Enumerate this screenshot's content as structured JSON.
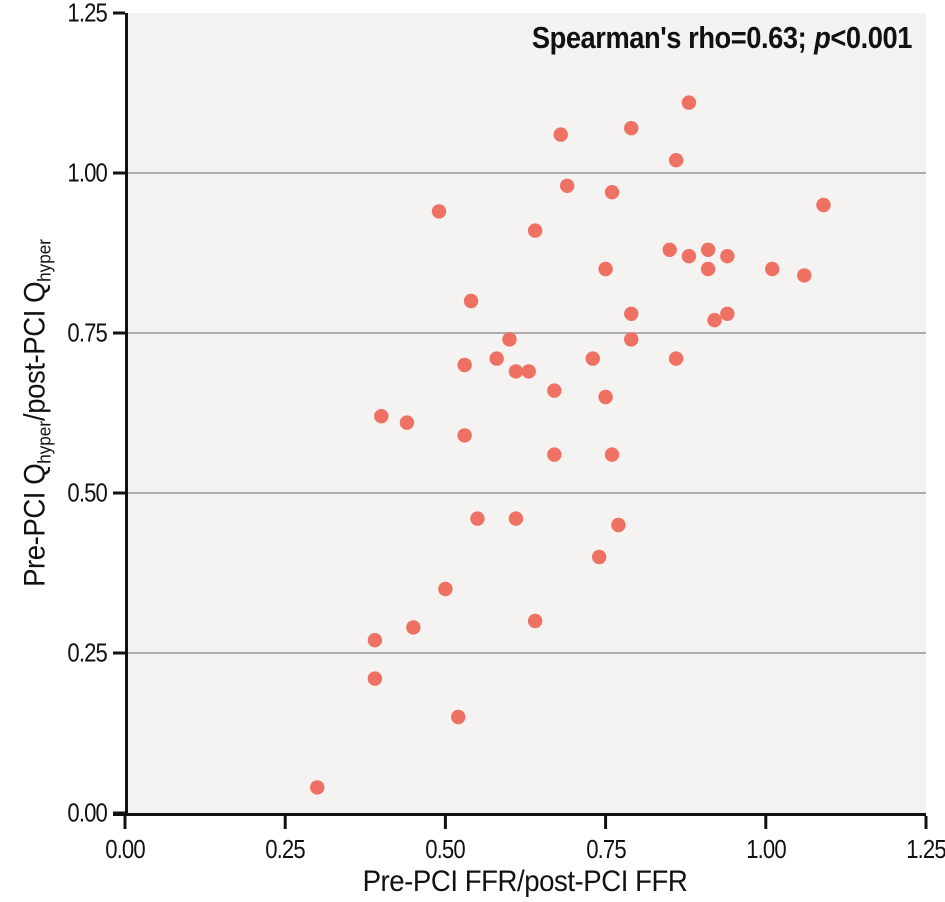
{
  "figure": {
    "annotation": {
      "text_before": "Spearman's rho=0.63;",
      "p_symbol": "p",
      "text_after": "<0.001"
    },
    "axes": {
      "x_title": "Pre-PCI FFR/post-PCI FFR",
      "y_title_p1": "Pre-PCI Q",
      "y_title_sub1": "hyper",
      "y_title_p2": "/post-PCI Q",
      "y_title_sub2": "hyper"
    }
  },
  "chart_data": {
    "type": "scatter",
    "title": "",
    "annotation": "Spearman's rho=0.63; p<0.001",
    "xlabel": "Pre-PCI FFR/post-PCI FFR",
    "ylabel": "Pre-PCI Q_hyper/post-PCI Q_hyper",
    "xlim": [
      0,
      1.25
    ],
    "ylim": [
      0,
      1.25
    ],
    "xtick_labels": [
      "0.00",
      "0.25",
      "0.50",
      "0.75",
      "1.00",
      "1.25"
    ],
    "ytick_labels": [
      "0.00",
      "0.25",
      "0.50",
      "0.75",
      "1.00",
      "1.25"
    ],
    "gridlines": {
      "horizontal_at": [
        0.25,
        0.5,
        0.75,
        1.0
      ],
      "vertical": false
    },
    "legend": "none",
    "colors": {
      "point": "#ee7164",
      "plot_bg": "#f4f3f2",
      "gridline": "#b0adad",
      "axis": "#111111"
    },
    "point_radius_px": 7.2,
    "points": [
      [
        0.3,
        0.04
      ],
      [
        0.52,
        0.15
      ],
      [
        0.39,
        0.21
      ],
      [
        0.39,
        0.27
      ],
      [
        0.45,
        0.29
      ],
      [
        0.64,
        0.3
      ],
      [
        0.5,
        0.35
      ],
      [
        0.74,
        0.4
      ],
      [
        0.77,
        0.45
      ],
      [
        0.55,
        0.46
      ],
      [
        0.61,
        0.46
      ],
      [
        0.53,
        0.59
      ],
      [
        0.4,
        0.62
      ],
      [
        0.44,
        0.61
      ],
      [
        0.67,
        0.56
      ],
      [
        0.76,
        0.56
      ],
      [
        0.75,
        0.65
      ],
      [
        0.67,
        0.66
      ],
      [
        0.53,
        0.7
      ],
      [
        0.61,
        0.69
      ],
      [
        0.63,
        0.69
      ],
      [
        0.58,
        0.71
      ],
      [
        0.73,
        0.71
      ],
      [
        0.86,
        0.71
      ],
      [
        0.6,
        0.74
      ],
      [
        0.79,
        0.74
      ],
      [
        0.79,
        0.78
      ],
      [
        0.92,
        0.77
      ],
      [
        0.94,
        0.78
      ],
      [
        0.54,
        0.8
      ],
      [
        0.75,
        0.85
      ],
      [
        0.64,
        0.91
      ],
      [
        0.49,
        0.94
      ],
      [
        0.76,
        0.97
      ],
      [
        0.69,
        0.98
      ],
      [
        0.68,
        1.06
      ],
      [
        0.79,
        1.07
      ],
      [
        0.86,
        1.02
      ],
      [
        0.88,
        1.11
      ],
      [
        0.85,
        0.88
      ],
      [
        0.88,
        0.87
      ],
      [
        0.91,
        0.88
      ],
      [
        0.91,
        0.85
      ],
      [
        0.94,
        0.87
      ],
      [
        1.01,
        0.85
      ],
      [
        1.06,
        0.84
      ],
      [
        1.09,
        0.95
      ]
    ]
  }
}
